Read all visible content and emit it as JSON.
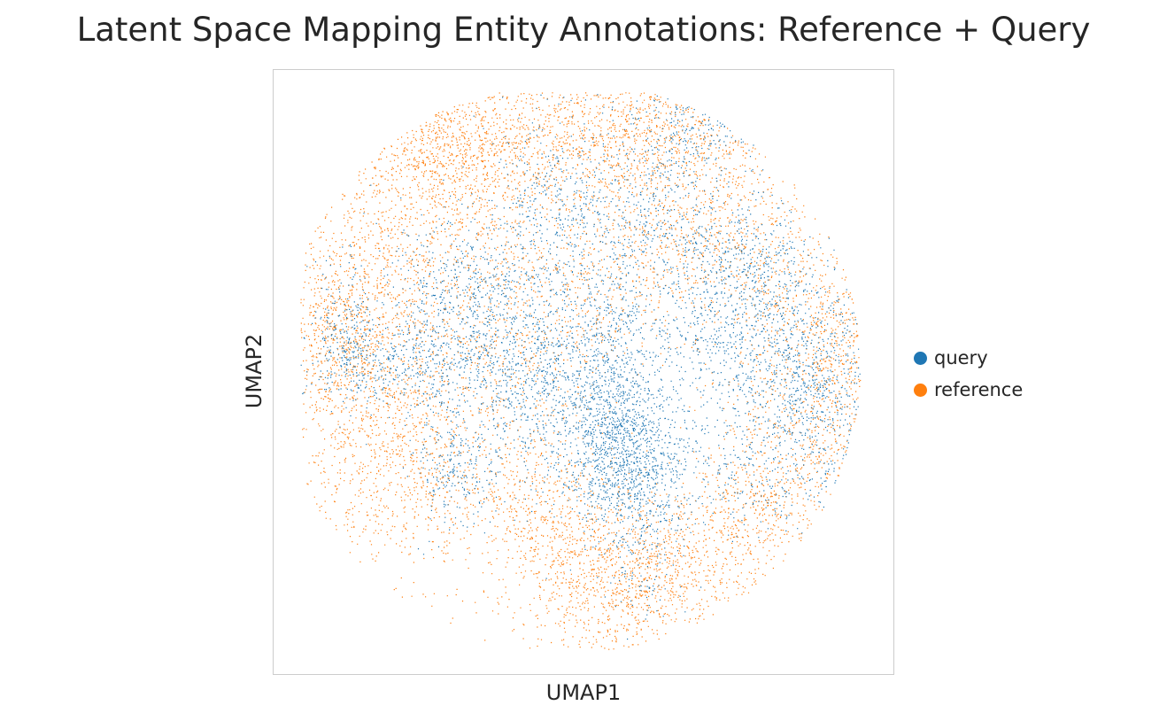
{
  "chart_data": {
    "type": "scatter",
    "title": "Latent Space Mapping Entity Annotations: Reference + Query",
    "xlabel": "UMAP1",
    "ylabel": "UMAP2",
    "xticks": [],
    "yticks": [],
    "grid": false,
    "legend_position": "right",
    "series": [
      {
        "name": "query",
        "color": "#1f77b4"
      },
      {
        "name": "reference",
        "color": "#ff7f0e"
      }
    ]
  }
}
